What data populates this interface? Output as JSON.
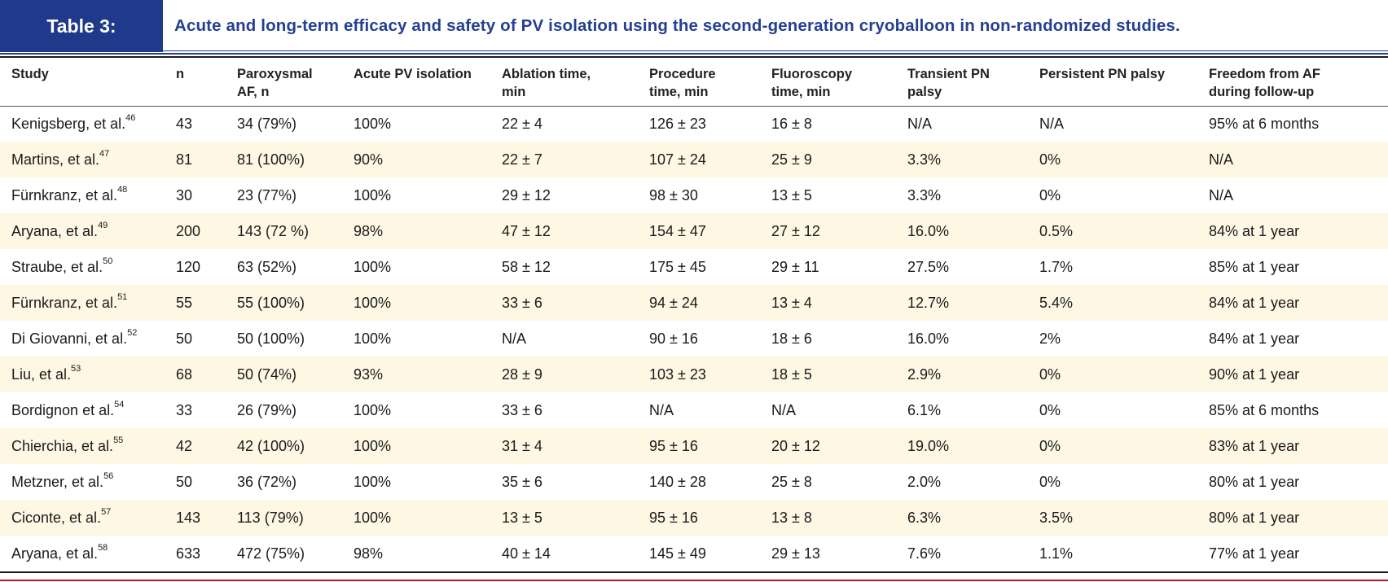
{
  "table_label": "Table 3:",
  "caption": "Acute and long-term efficacy and safety of PV isolation using the second-generation cryoballoon in non-randomized studies.",
  "headers": [
    {
      "line1": "Study",
      "line2": ""
    },
    {
      "line1": "n",
      "line2": ""
    },
    {
      "line1": "Paroxysmal",
      "line2": "AF, n"
    },
    {
      "line1": "Acute PV isolation",
      "line2": ""
    },
    {
      "line1": "Ablation time,",
      "line2": "min"
    },
    {
      "line1": "Procedure",
      "line2": "time, min"
    },
    {
      "line1": "Fluoroscopy",
      "line2": "time, min"
    },
    {
      "line1": "Transient  PN",
      "line2": "palsy"
    },
    {
      "line1": "Persistent  PN palsy",
      "line2": ""
    },
    {
      "line1": "Freedom from AF",
      "line2": "during follow-up"
    }
  ],
  "rows": [
    {
      "study": "Kenigsberg, et al.",
      "ref": "46",
      "n": "43",
      "paroxysmal": "34 (79%)",
      "acute": "100%",
      "ablation": "22 ± 4",
      "procedure": "126 ± 23",
      "fluoro": "16 ± 8",
      "transient": "N/A",
      "persistent": "N/A",
      "freedom": "95% at 6 months"
    },
    {
      "study": "Martins, et al.",
      "ref": "47",
      "n": "81",
      "paroxysmal": "81 (100%)",
      "acute": "90%",
      "ablation": "22 ± 7",
      "procedure": "107 ± 24",
      "fluoro": "25 ± 9",
      "transient": "3.3%",
      "persistent": "0%",
      "freedom": "N/A"
    },
    {
      "study": "Fürnkranz, et al.",
      "ref": "48",
      "n": "30",
      "paroxysmal": "23 (77%)",
      "acute": "100%",
      "ablation": "29 ± 12",
      "procedure": "98 ± 30",
      "fluoro": "13 ± 5",
      "transient": "3.3%",
      "persistent": "0%",
      "freedom": "N/A"
    },
    {
      "study": "Aryana, et al.",
      "ref": "49",
      "n": "200",
      "paroxysmal": "143 (72 %)",
      "acute": "98%",
      "ablation": "47 ± 12",
      "procedure": "154 ± 47",
      "fluoro": "27 ± 12",
      "transient": "16.0%",
      "persistent": "0.5%",
      "freedom": "84% at 1 year"
    },
    {
      "study": "Straube, et al.",
      "ref": "50",
      "n": "120",
      "paroxysmal": "63 (52%)",
      "acute": "100%",
      "ablation": "58 ± 12",
      "procedure": "175 ± 45",
      "fluoro": "29 ± 11",
      "transient": "27.5%",
      "persistent": "1.7%",
      "freedom": "85% at 1 year"
    },
    {
      "study": "Fürnkranz, et al.",
      "ref": "51",
      "n": "55",
      "paroxysmal": "55 (100%)",
      "acute": "100%",
      "ablation": "33 ± 6",
      "procedure": "94 ± 24",
      "fluoro": "13 ± 4",
      "transient": "12.7%",
      "persistent": "5.4%",
      "freedom": "84% at 1 year"
    },
    {
      "study": "Di Giovanni, et al.",
      "ref": "52",
      "n": "50",
      "paroxysmal": "50 (100%)",
      "acute": "100%",
      "ablation": "N/A",
      "procedure": "90 ± 16",
      "fluoro": "18 ± 6",
      "transient": "16.0%",
      "persistent": "2%",
      "freedom": "84% at 1 year"
    },
    {
      "study": "Liu, et al.",
      "ref": "53",
      "n": "68",
      "paroxysmal": "50 (74%)",
      "acute": "93%",
      "ablation": "28 ± 9",
      "procedure": "103 ± 23",
      "fluoro": "18 ± 5",
      "transient": "2.9%",
      "persistent": "0%",
      "freedom": "90% at 1 year"
    },
    {
      "study": "Bordignon et al.",
      "ref": "54",
      "n": "33",
      "paroxysmal": "26 (79%)",
      "acute": "100%",
      "ablation": "33 ± 6",
      "procedure": "N/A",
      "fluoro": "N/A",
      "transient": "6.1%",
      "persistent": "0%",
      "freedom": "85% at 6 months"
    },
    {
      "study": "Chierchia, et al.",
      "ref": "55",
      "n": "42",
      "paroxysmal": "42 (100%)",
      "acute": "100%",
      "ablation": "31 ± 4",
      "procedure": "95 ± 16",
      "fluoro": "20 ± 12",
      "transient": "19.0%",
      "persistent": "0%",
      "freedom": "83% at 1 year"
    },
    {
      "study": "Metzner, et al.",
      "ref": "56",
      "n": "50",
      "paroxysmal": "36 (72%)",
      "acute": "100%",
      "ablation": "35 ± 6",
      "procedure": "140 ± 28",
      "fluoro": "25 ± 8",
      "transient": "2.0%",
      "persistent": "0%",
      "freedom": "80% at 1 year"
    },
    {
      "study": "Ciconte, et al.",
      "ref": "57",
      "n": "143",
      "paroxysmal": "113 (79%)",
      "acute": "100%",
      "ablation": "13 ± 5",
      "procedure": "95 ± 16",
      "fluoro": "13 ± 8",
      "transient": "6.3%",
      "persistent": "3.5%",
      "freedom": "80% at 1 year"
    },
    {
      "study": "Aryana, et al.",
      "ref": "58",
      "n": "633",
      "paroxysmal": "472 (75%)",
      "acute": "98%",
      "ablation": "40 ± 14",
      "procedure": "145 ± 49",
      "fluoro": "29 ± 13",
      "transient": "7.6%",
      "persistent": "1.1%",
      "freedom": "77% at 1 year"
    }
  ]
}
